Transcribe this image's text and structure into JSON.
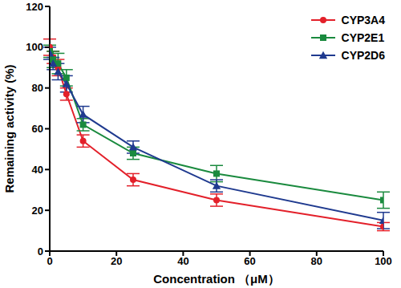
{
  "chart_data": {
    "type": "line",
    "x_label": "Concentration （μM）",
    "y_label": "Remaining activity (%)",
    "x": [
      0,
      1,
      2.5,
      5,
      10,
      25,
      50,
      100
    ],
    "xlim": [
      0,
      100
    ],
    "xticks": [
      0,
      20,
      40,
      60,
      80,
      100
    ],
    "ylim": [
      0,
      120
    ],
    "yticks": [
      0,
      20,
      40,
      60,
      80,
      100,
      120
    ],
    "grid": false,
    "legend": "top right",
    "series": [
      {
        "name": "CYP3A4",
        "color": "#e3202a",
        "marker": "circle",
        "values": [
          100,
          95,
          90,
          77,
          54,
          35,
          25,
          12
        ],
        "errors": [
          4,
          3,
          4,
          3,
          3,
          3,
          3,
          2
        ]
      },
      {
        "name": "CYP2E1",
        "color": "#1a8a3e",
        "marker": "square",
        "values": [
          98,
          94,
          92,
          85,
          62,
          48,
          38,
          25
        ],
        "errors": [
          3,
          4,
          5,
          4,
          3,
          3,
          4,
          4
        ]
      },
      {
        "name": "CYP2D6",
        "color": "#1f3a8f",
        "marker": "triangle",
        "values": [
          97,
          92,
          88,
          82,
          67,
          51,
          32,
          15
        ],
        "errors": [
          3,
          3,
          4,
          4,
          4,
          3,
          3,
          4
        ]
      }
    ]
  }
}
